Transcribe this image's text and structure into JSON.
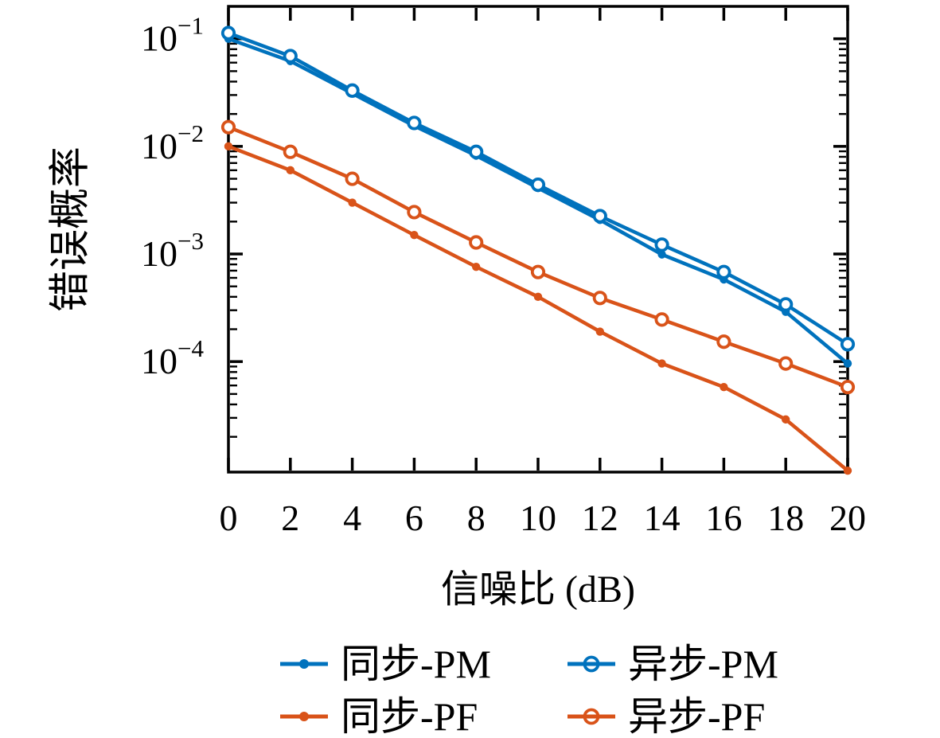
{
  "figure_title": "",
  "colors": {
    "series_blue": "#0072bd",
    "series_orange": "#d95319",
    "axis": "#000000",
    "background": "#ffffff"
  },
  "chart_data": {
    "type": "line",
    "title": "",
    "xlabel": "信噪比 (dB)",
    "ylabel": "错误概率",
    "xlim": [
      0,
      20
    ],
    "ylim": [
      9.4e-06,
      0.2
    ],
    "yscale": "log",
    "grid": false,
    "box": true,
    "xticks": [
      0,
      2,
      4,
      6,
      8,
      10,
      12,
      14,
      16,
      18,
      20
    ],
    "ytick_exponents": [
      -1,
      -2,
      -3,
      -4
    ],
    "legend_position": "below-two-columns",
    "x": [
      0,
      2,
      4,
      6,
      8,
      10,
      12,
      14,
      16,
      18,
      20
    ],
    "series": [
      {
        "name": "同步-PM",
        "color": "#0072bd",
        "marker": "dot",
        "values": [
          0.1,
          0.062,
          0.031,
          0.0155,
          0.0082,
          0.0041,
          0.00207,
          0.00099,
          0.00058,
          0.00029,
          9.6e-05
        ]
      },
      {
        "name": "异步-PM",
        "color": "#0072bd",
        "marker": "open-circle",
        "values": [
          0.113,
          0.069,
          0.033,
          0.0165,
          0.0089,
          0.0044,
          0.00225,
          0.00122,
          0.00068,
          0.00034,
          0.000145
        ]
      },
      {
        "name": "同步-PF",
        "color": "#d95319",
        "marker": "dot",
        "values": [
          0.01,
          0.006,
          0.003,
          0.0015,
          0.00076,
          0.0004,
          0.00019,
          9.6e-05,
          5.8e-05,
          2.9e-05,
          9.7e-06
        ]
      },
      {
        "name": "异步-PF",
        "color": "#d95319",
        "marker": "open-circle",
        "values": [
          0.0151,
          0.0089,
          0.005,
          0.00245,
          0.00128,
          0.00068,
          0.00039,
          0.000246,
          0.000153,
          9.6e-05,
          5.8e-05
        ]
      }
    ]
  }
}
